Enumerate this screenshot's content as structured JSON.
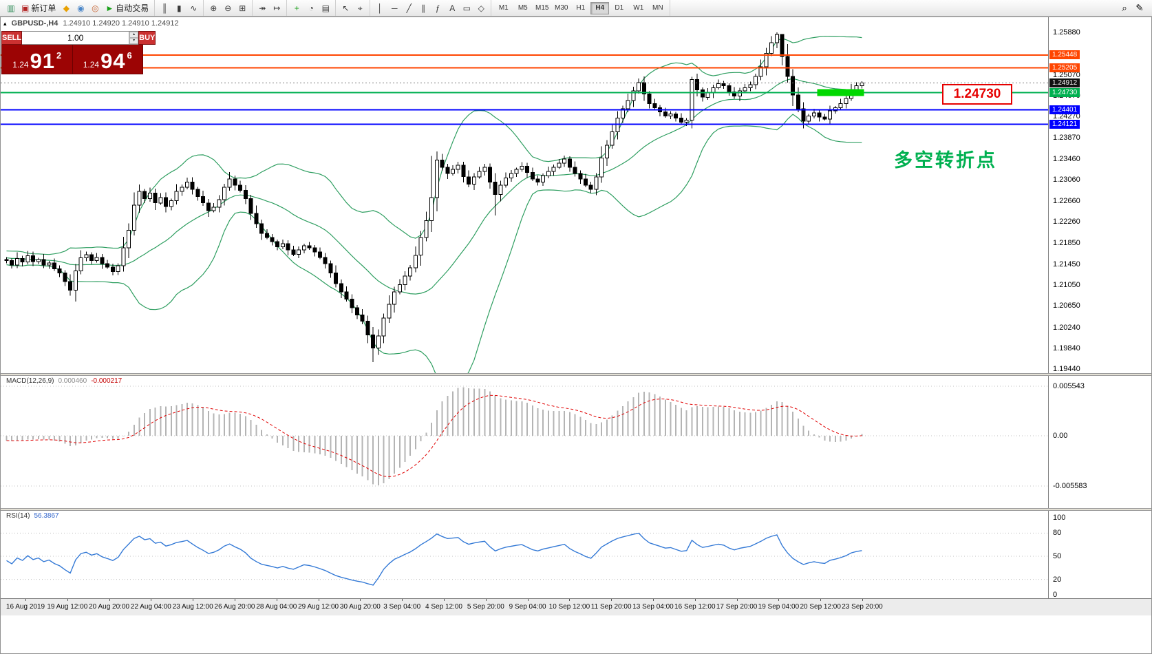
{
  "icons": {
    "collapse": "▴",
    "spin_up": "▴",
    "spin_down": "▾"
  },
  "toolbar": {
    "groups": [
      {
        "name": "trade-group",
        "items": [
          {
            "name": "terminal-icon",
            "glyph": "▥",
            "color": "#2e8b57"
          },
          {
            "name": "new-order-button",
            "glyph": "▣",
            "color": "#b22222",
            "label": "新订单"
          },
          {
            "name": "depth-of-market-icon",
            "glyph": "◆",
            "color": "#e8a000"
          },
          {
            "name": "profile-icon",
            "glyph": "◉",
            "color": "#4a86c8"
          },
          {
            "name": "community-icon",
            "glyph": "◎",
            "color": "#c86432"
          },
          {
            "name": "autotrading-button",
            "glyph": "►",
            "color": "#18a018",
            "label": "自动交易"
          }
        ]
      },
      {
        "name": "chart-type-group",
        "items": [
          {
            "name": "ohlc-bars-icon",
            "glyph": "║"
          },
          {
            "name": "candlestick-icon",
            "glyph": "▮"
          },
          {
            "name": "line-chart-icon",
            "glyph": "∿"
          }
        ]
      },
      {
        "name": "zoom-group",
        "items": [
          {
            "name": "zoom-in-icon",
            "glyph": "⊕"
          },
          {
            "name": "zoom-out-icon",
            "glyph": "⊖"
          },
          {
            "name": "tile-windows-icon",
            "glyph": "⊞"
          }
        ]
      },
      {
        "name": "scroll-group",
        "items": [
          {
            "name": "auto-scroll-icon",
            "glyph": "↠"
          },
          {
            "name": "chart-shift-icon",
            "glyph": "↦"
          }
        ]
      },
      {
        "name": "indicator-group",
        "items": [
          {
            "name": "add-indicator-icon",
            "glyph": "+",
            "color": "#18a018"
          },
          {
            "name": "periods-icon",
            "glyph": "◔"
          },
          {
            "name": "templates-icon",
            "glyph": "▤"
          }
        ]
      },
      {
        "name": "cursor-group",
        "items": [
          {
            "name": "cursor-icon",
            "glyph": "↖"
          },
          {
            "name": "crosshair-icon",
            "glyph": "⌖"
          }
        ]
      },
      {
        "name": "draw-group",
        "items": [
          {
            "name": "vertical-line-icon",
            "glyph": "│"
          },
          {
            "name": "horizontal-line-icon",
            "glyph": "─"
          },
          {
            "name": "trendline-icon",
            "glyph": "╱"
          },
          {
            "name": "channel-icon",
            "glyph": "∥"
          },
          {
            "name": "fibonacci-icon",
            "glyph": "ƒ"
          },
          {
            "name": "text-icon",
            "glyph": "A"
          },
          {
            "name": "label-icon",
            "glyph": "▭"
          },
          {
            "name": "shapes-icon",
            "glyph": "◇"
          }
        ]
      },
      {
        "name": "timeframe-group",
        "timeframes": [
          "M1",
          "M5",
          "M15",
          "M30",
          "H1",
          "H4",
          "D1",
          "W1",
          "MN"
        ],
        "active": "H4"
      }
    ],
    "right_items": [
      {
        "name": "search-icon",
        "glyph": "⌕"
      },
      {
        "name": "edit-icon",
        "glyph": "✎"
      }
    ]
  },
  "chart": {
    "title": "GBPUSD-,H4",
    "ohlc_display": "1.24910 1.24920 1.24910 1.24912"
  },
  "one_click": {
    "sell_label": "SELL",
    "buy_label": "BUY",
    "volume": "1.00",
    "sell_price": {
      "prefix": "1.24",
      "big": "91",
      "sup": "2"
    },
    "buy_price": {
      "prefix": "1.24",
      "big": "94",
      "sup": "6"
    }
  },
  "levels": [
    {
      "name": "resistance-line-1",
      "price": 1.25448,
      "label": "1.25448",
      "color": "#ff4500",
      "badge_bg": "#ff4500",
      "width": 2,
      "style": "solid"
    },
    {
      "name": "resistance-line-2",
      "price": 1.25205,
      "label": "1.25205",
      "color": "#ff4500",
      "badge_bg": "#ff4500",
      "width": 2,
      "style": "solid"
    },
    {
      "name": "current-price-line",
      "price": 1.24912,
      "label": "1.24912",
      "color": "#777777",
      "badge_bg": "#111111",
      "width": 1,
      "style": "dotted"
    },
    {
      "name": "pivot-line",
      "price": 1.2473,
      "label": "1.24730",
      "color": "#00b050",
      "badge_bg": "#00b050",
      "width": 2,
      "style": "solid"
    },
    {
      "name": "support-line-1",
      "price": 1.24401,
      "label": "1.24401",
      "color": "#0000ff",
      "badge_bg": "#0000ff",
      "width": 2,
      "style": "solid"
    },
    {
      "name": "support-line-2",
      "price": 1.24121,
      "label": "1.24121",
      "color": "#0000ff",
      "badge_bg": "#0000ff",
      "width": 2,
      "style": "solid"
    }
  ],
  "annotations": {
    "price_callout": "1.24730",
    "turning_point_text": "多空转折点",
    "highlight_zone": {
      "price": 1.2473,
      "from_idx": 153,
      "to_idx": 161,
      "color": "#00d800"
    }
  },
  "axes": {
    "price_ticks": [
      "1.25880",
      "1.25070",
      "1.24670",
      "1.24270",
      "1.23870",
      "1.23460",
      "1.23060",
      "1.22660",
      "1.22260",
      "1.21850",
      "1.21450",
      "1.21050",
      "1.20650",
      "1.20240",
      "1.19840",
      "1.19440"
    ],
    "time_labels": [
      "16 Aug 2019",
      "19 Aug 12:00",
      "20 Aug 20:00",
      "22 Aug 04:00",
      "23 Aug 12:00",
      "26 Aug 20:00",
      "28 Aug 04:00",
      "29 Aug 12:00",
      "30 Aug 20:00",
      "3 Sep 04:00",
      "4 Sep 12:00",
      "5 Sep 20:00",
      "9 Sep 04:00",
      "10 Sep 12:00",
      "11 Sep 20:00",
      "13 Sep 04:00",
      "16 Sep 12:00",
      "17 Sep 20:00",
      "19 Sep 04:00",
      "20 Sep 12:00",
      "23 Sep 20:00"
    ]
  },
  "indicators": {
    "macd": {
      "name": "MACD(12,26,9)",
      "main_value": "0.000460",
      "signal_value": "-0.000217",
      "scale_labels": [
        "0.005543",
        "0.00",
        "-0.005583"
      ],
      "params": {
        "fast": 12,
        "slow": 26,
        "signal": 9
      }
    },
    "rsi": {
      "name": "RSI(14)",
      "value": "56.3867",
      "period": 14,
      "scale_labels": [
        "100",
        "80",
        "50",
        "20",
        "0"
      ],
      "scale_values": [
        100,
        80,
        50,
        20,
        0
      ],
      "level_lines": [
        80,
        50,
        20
      ]
    }
  },
  "chart_data": {
    "type": "candlestick",
    "symbol": "GBPUSD-",
    "timeframe": "H4",
    "title": "GBPUSD-,H4",
    "ohlc_current": {
      "open": "1.24910",
      "high": "1.24920",
      "low": "1.24910",
      "close": "1.24912"
    },
    "ylim": [
      1.1944,
      1.2588
    ],
    "bollinger": {
      "period": 20,
      "deviation": 2
    },
    "pre_closes": [
      1.218,
      1.2172,
      1.2185,
      1.2178,
      1.2168,
      1.2175,
      1.2182,
      1.217,
      1.216,
      1.2168,
      1.2174,
      1.2166,
      1.2158,
      1.2165,
      1.2172,
      1.2163,
      1.2155,
      1.2162,
      1.2158,
      1.215,
      1.2157,
      1.2164,
      1.2156,
      1.2148,
      1.2154,
      1.216,
      1.2152,
      1.2146,
      1.215,
      1.2154
    ],
    "closes": [
      1.2152,
      1.2143,
      1.2156,
      1.2149,
      1.2161,
      1.215,
      1.2154,
      1.2143,
      1.2147,
      1.2136,
      1.2128,
      1.2112,
      1.2095,
      1.2132,
      1.2157,
      1.2163,
      1.2152,
      1.2158,
      1.2146,
      1.2139,
      1.2131,
      1.2142,
      1.2176,
      1.221,
      1.2258,
      1.2284,
      1.227,
      1.2281,
      1.2262,
      1.2272,
      1.2255,
      1.2266,
      1.2284,
      1.2292,
      1.2302,
      1.2288,
      1.2274,
      1.2262,
      1.2247,
      1.2254,
      1.2268,
      1.2292,
      1.2308,
      1.2296,
      1.2286,
      1.227,
      1.2242,
      1.2222,
      1.2204,
      1.2196,
      1.2188,
      1.2178,
      1.2184,
      1.2172,
      1.2164,
      1.2172,
      1.218,
      1.2176,
      1.2168,
      1.2158,
      1.2146,
      1.2128,
      1.2108,
      1.2092,
      1.2078,
      1.2062,
      1.2048,
      1.2036,
      1.201,
      1.1985,
      1.2008,
      1.2042,
      1.2068,
      1.2092,
      1.2106,
      1.2122,
      1.2138,
      1.2162,
      1.2196,
      1.2228,
      1.2272,
      1.2344,
      1.233,
      1.2318,
      1.2326,
      1.2334,
      1.2312,
      1.2298,
      1.2312,
      1.2322,
      1.233,
      1.2302,
      1.2278,
      1.2296,
      1.231,
      1.2318,
      1.2326,
      1.2332,
      1.232,
      1.2308,
      1.2302,
      1.2314,
      1.2322,
      1.233,
      1.2338,
      1.2346,
      1.233,
      1.2318,
      1.2308,
      1.2296,
      1.2288,
      1.2312,
      1.2348,
      1.2372,
      1.2398,
      1.2424,
      1.2442,
      1.2458,
      1.2476,
      1.2492,
      1.247,
      1.2452,
      1.2444,
      1.2436,
      1.2428,
      1.2432,
      1.2424,
      1.2416,
      1.242,
      1.2498,
      1.2478,
      1.2464,
      1.2472,
      1.2482,
      1.249,
      1.2486,
      1.2474,
      1.2466,
      1.2476,
      1.2482,
      1.2488,
      1.2504,
      1.2522,
      1.2548,
      1.2568,
      1.2584,
      1.2542,
      1.2504,
      1.2468,
      1.2442,
      1.2418,
      1.2428,
      1.2434,
      1.2426,
      1.2422,
      1.2438,
      1.2444,
      1.2452,
      1.2462,
      1.2478,
      1.2486,
      1.24912
    ],
    "wick_overrides": {
      "12": {
        "l": 1.2085
      },
      "69": {
        "l": 1.1958
      },
      "80": {
        "h": 1.2352
      },
      "92": {
        "l": 1.2238
      },
      "119": {
        "h": 1.25
      },
      "129": {
        "h": 1.2503
      },
      "145": {
        "h": 1.2588
      },
      "146": {
        "h": 1.2576
      }
    }
  }
}
